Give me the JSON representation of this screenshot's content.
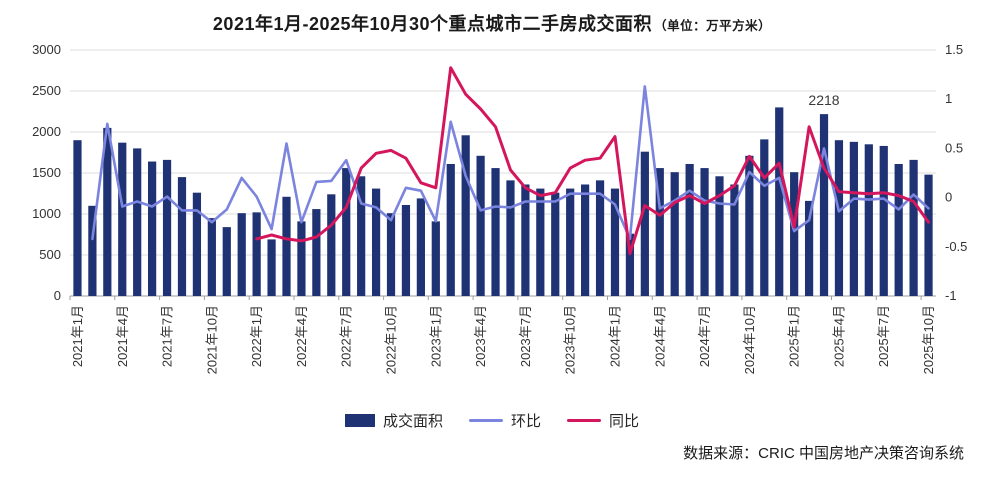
{
  "title": {
    "main": "2021年1月-2025年10月30个重点城市二手房成交面积",
    "unit": "（单位：万平方米）"
  },
  "source": "数据来源：CRIC 中国房地产决策咨询系统",
  "chart_data": {
    "type": "combo",
    "subtypes": [
      "bar",
      "line",
      "line"
    ],
    "n_points": 58,
    "x_tick_every": 3,
    "x_tick_labels": [
      "2021年1月",
      "2021年4月",
      "2021年7月",
      "2021年10月",
      "2022年1月",
      "2022年4月",
      "2022年7月",
      "2022年10月",
      "2023年1月",
      "2023年4月",
      "2023年7月",
      "2023年10月",
      "2024年1月",
      "2024年4月",
      "2024年7月",
      "2024年10月",
      "2025年1月",
      "2025年4月",
      "2025年7月",
      "2025年10月"
    ],
    "left_axis": {
      "min": 0,
      "max": 3000,
      "step": 500
    },
    "right_axis": {
      "min": -1,
      "max": 1.5,
      "step": 0.5
    },
    "grid": "horizontal",
    "legend_position": "bottom",
    "annotation": {
      "text": "2218",
      "index": 50
    },
    "series": [
      {
        "name": "成交面积",
        "type": "bar",
        "axis": "left",
        "color": "#1F3274",
        "values": [
          1900,
          1100,
          2050,
          1870,
          1800,
          1640,
          1660,
          1450,
          1260,
          950,
          840,
          1010,
          1020,
          690,
          1210,
          910,
          1060,
          1240,
          1560,
          1460,
          1310,
          1010,
          1110,
          1190,
          910,
          1610,
          1960,
          1710,
          1560,
          1410,
          1360,
          1310,
          1260,
          1310,
          1360,
          1410,
          1310,
          760,
          1760,
          1560,
          1510,
          1610,
          1560,
          1460,
          1360,
          1710,
          1910,
          2300,
          1510,
          1160,
          2218,
          1900,
          1880,
          1850,
          1830,
          1610,
          1660,
          1480
        ]
      },
      {
        "name": "环比",
        "type": "line",
        "axis": "right",
        "color": "#7B84DE",
        "values": [
          null,
          -0.42,
          0.75,
          -0.09,
          -0.04,
          -0.09,
          0.01,
          -0.13,
          -0.13,
          -0.25,
          -0.12,
          0.2,
          0.01,
          -0.32,
          0.55,
          -0.25,
          0.16,
          0.17,
          0.38,
          -0.06,
          -0.1,
          -0.23,
          0.1,
          0.07,
          -0.24,
          0.77,
          0.22,
          -0.13,
          -0.09,
          -0.1,
          -0.04,
          -0.04,
          -0.04,
          0.04,
          0.04,
          0.04,
          -0.07,
          -0.42,
          1.13,
          -0.11,
          -0.03,
          0.07,
          -0.03,
          -0.06,
          -0.07,
          0.26,
          0.12,
          0.2,
          -0.34,
          -0.23,
          0.5,
          -0.14,
          -0.01,
          -0.02,
          -0.01,
          -0.12,
          0.03,
          -0.11
        ]
      },
      {
        "name": "同比",
        "type": "line",
        "axis": "right",
        "color": "#D4175C",
        "values": [
          null,
          null,
          null,
          null,
          null,
          null,
          null,
          null,
          null,
          null,
          null,
          null,
          -0.42,
          -0.38,
          -0.42,
          -0.44,
          -0.4,
          -0.28,
          -0.1,
          0.3,
          0.45,
          0.48,
          0.4,
          0.15,
          0.1,
          1.32,
          1.05,
          0.9,
          0.72,
          0.28,
          0.1,
          0.02,
          0.05,
          0.3,
          0.38,
          0.4,
          0.62,
          -0.57,
          -0.08,
          -0.18,
          -0.05,
          0.02,
          -0.06,
          0.02,
          0.12,
          0.42,
          0.2,
          0.35,
          -0.3,
          0.72,
          0.3,
          0.06,
          0.05,
          0.04,
          0.05,
          0.02,
          -0.04,
          -0.25
        ]
      }
    ]
  },
  "legend": {
    "items": [
      "成交面积",
      "环比",
      "同比"
    ]
  }
}
